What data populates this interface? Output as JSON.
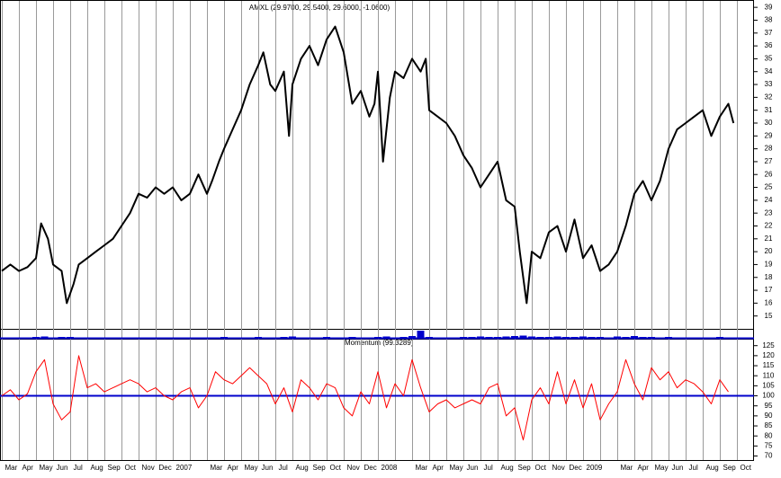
{
  "chart_data": [
    {
      "type": "line",
      "title": "AMXL (29.9700, 29.5400, 29.6000, -1.0600)",
      "color": "#000000",
      "xlim": [
        0,
        44
      ],
      "ylim": [
        14,
        39.5
      ],
      "yticks": [
        15,
        16,
        17,
        18,
        19,
        20,
        21,
        22,
        23,
        24,
        25,
        26,
        27,
        28,
        29,
        30,
        31,
        32,
        33,
        34,
        35,
        36,
        37,
        38,
        39
      ],
      "x": [
        0,
        0.5,
        1,
        1.5,
        2,
        2.3,
        2.7,
        3,
        3.5,
        3.8,
        4.2,
        4.5,
        5,
        5.5,
        6,
        6.5,
        7,
        7.5,
        8,
        8.5,
        9,
        9.5,
        10,
        10.5,
        11,
        11.5,
        12,
        12.3,
        12.7,
        13,
        13.5,
        14,
        14.5,
        15,
        15.3,
        15.7,
        16,
        16.5,
        16.8,
        17,
        17.5,
        18,
        18.5,
        19,
        19.5,
        20,
        20.5,
        21,
        21.5,
        21.8,
        22,
        22.3,
        22.7,
        23,
        23.5,
        24,
        24.5,
        24.8,
        25,
        25.5,
        26,
        26.5,
        27,
        27.5,
        28,
        28.5,
        29,
        29.5,
        30,
        30.3,
        30.7,
        31,
        31.5,
        32,
        32.5,
        33,
        33.5,
        34,
        34.5,
        35,
        35.5,
        36,
        36.5,
        37,
        37.5,
        38,
        38.5,
        39,
        39.5,
        40,
        40.5,
        41,
        41.5,
        42,
        42.5,
        42.8
      ],
      "values": [
        18.5,
        19,
        18.5,
        18.8,
        19.5,
        22.2,
        21,
        19,
        18.5,
        16,
        17.5,
        19,
        19.5,
        20,
        20.5,
        21,
        22,
        23,
        24.5,
        24.2,
        25,
        24.5,
        25,
        24,
        24.5,
        26,
        24.5,
        25.5,
        27,
        28,
        29.5,
        31,
        33,
        34.5,
        35.5,
        33,
        32.5,
        34,
        29,
        33,
        35,
        36,
        34.5,
        36.5,
        37.5,
        35.5,
        31.5,
        32.5,
        30.5,
        31.5,
        34,
        27,
        32,
        34,
        33.5,
        35,
        34,
        35,
        31,
        30.5,
        30,
        29,
        27.5,
        26.5,
        25,
        26,
        27,
        24,
        23.5,
        20,
        16,
        20,
        19.5,
        21.5,
        22,
        20,
        22.5,
        19.5,
        20.5,
        18.5,
        19,
        20,
        22,
        24.5,
        25.5,
        24,
        25.5,
        28,
        29.5,
        30,
        30.5,
        31,
        29,
        30.5,
        31.5,
        30
      ]
    },
    {
      "type": "bar",
      "color": "#0000cc",
      "xlim": [
        0,
        44
      ],
      "ylim": [
        0,
        10
      ],
      "x": [
        0,
        0.5,
        1,
        1.5,
        2,
        2.5,
        3,
        3.5,
        4,
        4.5,
        5,
        5.5,
        6,
        6.5,
        7,
        7.5,
        8,
        8.5,
        9,
        9.5,
        10,
        10.5,
        11,
        11.5,
        12,
        12.5,
        13,
        13.5,
        14,
        14.5,
        15,
        15.5,
        16,
        16.5,
        17,
        17.5,
        18,
        18.5,
        19,
        19.5,
        20,
        20.5,
        21,
        21.5,
        22,
        22.5,
        23,
        23.5,
        24,
        24.5,
        25,
        25.5,
        26,
        26.5,
        27,
        27.5,
        28,
        28.5,
        29,
        29.5,
        30,
        30.5,
        31,
        31.5,
        32,
        32.5,
        33,
        33.5,
        34,
        34.5,
        35,
        35.5,
        36,
        36.5,
        37,
        37.5,
        38,
        38.5,
        39,
        39.5,
        40,
        40.5,
        41,
        41.5,
        42,
        42.5
      ],
      "values": [
        1,
        1.5,
        1,
        1,
        2,
        2.5,
        1.5,
        2,
        2,
        1.5,
        1,
        1,
        1.5,
        1,
        1,
        1.5,
        1,
        1,
        1.5,
        1,
        1,
        1.5,
        1,
        1.5,
        1,
        1.5,
        2,
        1.5,
        1,
        1.5,
        2,
        1.5,
        1.5,
        2,
        2.5,
        1.5,
        1.5,
        1,
        2,
        1.5,
        1.5,
        2,
        1.5,
        1.5,
        2,
        2.5,
        1.5,
        2,
        3,
        9,
        2,
        1.5,
        1.5,
        1.5,
        2,
        2,
        2.5,
        2,
        2,
        2.5,
        3,
        3.5,
        2.5,
        2,
        2,
        2.5,
        2,
        2,
        2.5,
        2,
        2,
        1.5,
        2.5,
        2,
        3,
        2,
        2,
        1.5,
        2,
        1.5,
        1.5,
        1.5,
        1.5,
        1.5,
        2,
        1.5
      ]
    },
    {
      "type": "line",
      "title": "Momentum (99.3289)",
      "color": "#ff0000",
      "baseline": 100,
      "baseline_color": "#0000cc",
      "xlim": [
        0,
        44
      ],
      "ylim": [
        68,
        128
      ],
      "yticks": [
        70,
        75,
        80,
        85,
        90,
        95,
        100,
        105,
        110,
        115,
        120,
        125
      ],
      "categories": [
        "Mar",
        "Apr",
        "May",
        "Jun",
        "Jul",
        "Aug",
        "Sep",
        "Oct",
        "Nov",
        "Dec",
        "2007",
        null,
        "Mar",
        "Apr",
        "May",
        "Jun",
        "Jul",
        "Aug",
        "Sep",
        "Oct",
        "Nov",
        "Dec",
        "2008",
        null,
        "Mar",
        "Apr",
        "May",
        "Jun",
        "Jul",
        "Aug",
        "Sep",
        "Oct",
        "Nov",
        "Dec",
        "2009",
        null,
        "Mar",
        "Apr",
        "May",
        "Jun",
        "Jul",
        "Aug",
        "Sep",
        "Oct"
      ],
      "x": [
        0,
        0.5,
        1,
        1.5,
        2,
        2.5,
        3,
        3.5,
        4,
        4.5,
        5,
        5.5,
        6,
        6.5,
        7,
        7.5,
        8,
        8.5,
        9,
        9.5,
        10,
        10.5,
        11,
        11.5,
        12,
        12.5,
        13,
        13.5,
        14,
        14.5,
        15,
        15.5,
        16,
        16.5,
        17,
        17.5,
        18,
        18.5,
        19,
        19.5,
        20,
        20.5,
        21,
        21.5,
        22,
        22.5,
        23,
        23.5,
        24,
        24.5,
        25,
        25.5,
        26,
        26.5,
        27,
        27.5,
        28,
        28.5,
        29,
        29.5,
        30,
        30.5,
        31,
        31.5,
        32,
        32.5,
        33,
        33.5,
        34,
        34.5,
        35,
        35.5,
        36,
        36.5,
        37,
        37.5,
        38,
        38.5,
        39,
        39.5,
        40,
        40.5,
        41,
        41.5,
        42,
        42.5
      ],
      "values": [
        100,
        103,
        98,
        101,
        112,
        118,
        96,
        88,
        92,
        120,
        104,
        106,
        102,
        104,
        106,
        108,
        106,
        102,
        104,
        100,
        98,
        102,
        104,
        94,
        100,
        112,
        108,
        106,
        110,
        114,
        110,
        106,
        96,
        104,
        92,
        108,
        104,
        98,
        106,
        104,
        94,
        90,
        102,
        96,
        112,
        94,
        106,
        100,
        118,
        104,
        92,
        96,
        98,
        94,
        96,
        98,
        96,
        104,
        106,
        90,
        94,
        78,
        98,
        104,
        96,
        112,
        96,
        108,
        94,
        106,
        88,
        96,
        102,
        118,
        106,
        98,
        114,
        108,
        112,
        104,
        108,
        106,
        102,
        96,
        108,
        102
      ]
    }
  ]
}
